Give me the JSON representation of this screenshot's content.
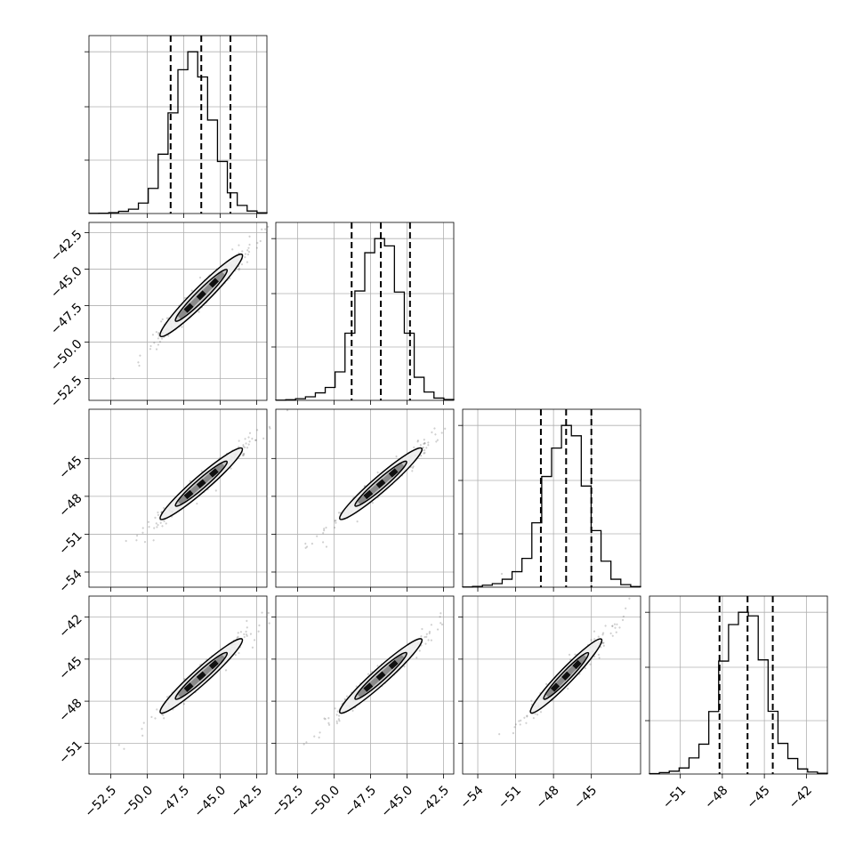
{
  "chart_data": {
    "type": "corner",
    "parameters": 4,
    "grid": true,
    "colors": {
      "line": "#000000",
      "grid": "#b0b0b0",
      "scatter": "#555555",
      "density_dark": "#000000",
      "density_light": "#cfcfcf"
    },
    "ranges": [
      [
        -54.0,
        -41.8
      ],
      [
        -54.0,
        -41.8
      ],
      [
        -55.2,
        -41.1
      ],
      [
        -53.2,
        -40.5
      ]
    ],
    "ticks": [
      [
        -52.5,
        -50.0,
        -47.5,
        -45.0,
        -42.5
      ],
      [
        -52.5,
        -50.0,
        -47.5,
        -45.0,
        -42.5
      ],
      [
        -54,
        -51,
        -48,
        -45
      ],
      [
        -51,
        -48,
        -45,
        -42
      ]
    ],
    "tick_labels": [
      [
        "−52.5",
        "−50.0",
        "−47.5",
        "−45.0",
        "−42.5"
      ],
      [
        "−52.5",
        "−50.0",
        "−47.5",
        "−45.0",
        "−42.5"
      ],
      [
        "−54",
        "−51",
        "−48",
        "−45"
      ],
      [
        "−51",
        "−48",
        "−45",
        "−42"
      ]
    ],
    "quantiles": [
      [
        -48.4,
        -46.3,
        -44.3
      ],
      [
        -48.8,
        -46.8,
        -44.8
      ],
      [
        -49.0,
        -47.0,
        -45.0
      ],
      [
        -48.2,
        -46.2,
        -44.4
      ]
    ],
    "histograms": [
      [
        1,
        2,
        5,
        12,
        24,
        58,
        140,
        330,
        560,
        800,
        900,
        760,
        520,
        290,
        115,
        45,
        14,
        4
      ],
      [
        1,
        3,
        8,
        17,
        36,
        62,
        137,
        323,
        526,
        710,
        778,
        743,
        521,
        323,
        111,
        40,
        11,
        4
      ],
      [
        1,
        4,
        10,
        18,
        40,
        78,
        145,
        324,
        557,
        700,
        814,
        762,
        509,
        285,
        131,
        40,
        13,
        3
      ],
      [
        2,
        7,
        14,
        30,
        80,
        148,
        310,
        560,
        741,
        802,
        784,
        566,
        311,
        152,
        77,
        25,
        10,
        4
      ]
    ],
    "correlation": 0.98,
    "center": [
      -46.3,
      -46.8,
      -47.0,
      -46.2
    ],
    "sigma": [
      1.6,
      1.6,
      1.6,
      1.5
    ]
  }
}
